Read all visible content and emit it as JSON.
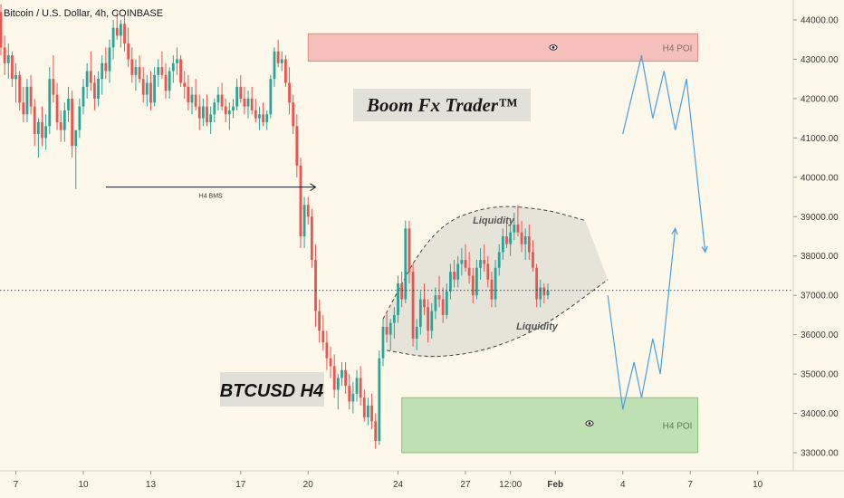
{
  "chart_data": {
    "type": "candlestick",
    "title": "Bitcoin / U.S. Dollar, 4h, COINBASE",
    "symbol": "BTCUSD",
    "timeframe": "4h",
    "exchange": "COINBASE",
    "ylim": [
      32500,
      44800
    ],
    "y_ticks": [
      "33000.00",
      "34000.00",
      "35000.00",
      "36000.00",
      "37000.00",
      "38000.00",
      "39000.00",
      "40000.00",
      "41000.00",
      "42000.00",
      "43000.00",
      "44000.00"
    ],
    "y_tick_values": [
      33000,
      34000,
      35000,
      36000,
      37000,
      38000,
      39000,
      40000,
      41000,
      42000,
      43000,
      44000
    ],
    "x_ticks": [
      "7",
      "10",
      "13",
      "17",
      "20",
      "24",
      "27",
      "12:00",
      "Feb",
      "4",
      "7",
      "10"
    ],
    "x_tick_index": [
      4,
      22,
      40,
      64,
      82,
      106,
      124,
      136,
      148,
      166,
      184,
      202
    ],
    "last_price": 37124.52,
    "last_price_label": "37124.52",
    "colors": {
      "up": "#26a69a",
      "down": "#ef5350",
      "background": "#fdf8e9",
      "projection": "#4a9fe0",
      "poi_top": "#f1a8a5",
      "poi_bottom": "#a8d8a0"
    },
    "candles": [
      [
        44200,
        44400,
        43100,
        43300
      ],
      [
        43300,
        43600,
        42600,
        42900
      ],
      [
        42900,
        43400,
        42500,
        43100
      ],
      [
        43100,
        43200,
        42300,
        42500
      ],
      [
        42500,
        42900,
        41900,
        42600
      ],
      [
        42600,
        42700,
        41700,
        41900
      ],
      [
        41900,
        42300,
        41400,
        41600
      ],
      [
        41600,
        42500,
        41400,
        42300
      ],
      [
        42300,
        42600,
        41600,
        41800
      ],
      [
        41800,
        42000,
        40800,
        41100
      ],
      [
        41100,
        41500,
        40500,
        41400
      ],
      [
        41400,
        41800,
        40800,
        41000
      ],
      [
        41000,
        41600,
        40700,
        41300
      ],
      [
        41300,
        42800,
        41100,
        42500
      ],
      [
        42500,
        43100,
        41900,
        42100
      ],
      [
        42100,
        42400,
        41200,
        41400
      ],
      [
        41400,
        41700,
        40900,
        41200
      ],
      [
        41200,
        41900,
        40900,
        41700
      ],
      [
        41700,
        42300,
        41400,
        42000
      ],
      [
        42000,
        42200,
        40500,
        40800
      ],
      [
        40800,
        41100,
        39700,
        41200
      ],
      [
        41200,
        42000,
        41000,
        41800
      ],
      [
        41800,
        42500,
        41600,
        42300
      ],
      [
        42300,
        42900,
        42000,
        42700
      ],
      [
        42700,
        43200,
        42200,
        42400
      ],
      [
        42400,
        42600,
        41700,
        42000
      ],
      [
        42000,
        42700,
        41800,
        42500
      ],
      [
        42500,
        43100,
        42100,
        42900
      ],
      [
        42900,
        43300,
        42500,
        42700
      ],
      [
        42700,
        43500,
        42400,
        43300
      ],
      [
        43300,
        44000,
        43000,
        43800
      ],
      [
        43800,
        44200,
        43500,
        43600
      ],
      [
        43600,
        44000,
        43300,
        43900
      ],
      [
        43900,
        44100,
        43200,
        43400
      ],
      [
        43400,
        43800,
        42800,
        43000
      ],
      [
        43000,
        43300,
        42400,
        42600
      ],
      [
        42600,
        43000,
        42200,
        42800
      ],
      [
        42800,
        43100,
        42400,
        42500
      ],
      [
        42500,
        42800,
        41900,
        42100
      ],
      [
        42100,
        42600,
        41800,
        42400
      ],
      [
        42400,
        42700,
        41700,
        41900
      ],
      [
        41900,
        42800,
        41800,
        42600
      ],
      [
        42600,
        43000,
        42300,
        42800
      ],
      [
        42800,
        43200,
        42500,
        42600
      ],
      [
        42600,
        42900,
        42000,
        42200
      ],
      [
        42200,
        42800,
        42000,
        42700
      ],
      [
        42700,
        43100,
        42400,
        42900
      ],
      [
        42900,
        43300,
        42600,
        43000
      ],
      [
        43000,
        43100,
        42300,
        42400
      ],
      [
        42400,
        42700,
        42000,
        42300
      ],
      [
        42300,
        42600,
        41700,
        41900
      ],
      [
        41900,
        42300,
        41600,
        42100
      ],
      [
        42100,
        42500,
        41700,
        41800
      ],
      [
        41800,
        42100,
        41200,
        41500
      ],
      [
        41500,
        42000,
        41300,
        41800
      ],
      [
        41800,
        42100,
        41300,
        41400
      ],
      [
        41400,
        41800,
        41100,
        41600
      ],
      [
        41600,
        42000,
        41400,
        41900
      ],
      [
        41900,
        42300,
        41700,
        42100
      ],
      [
        42100,
        42400,
        41700,
        41800
      ],
      [
        41800,
        42000,
        41400,
        41600
      ],
      [
        41600,
        41900,
        41200,
        41700
      ],
      [
        41700,
        42000,
        41500,
        41800
      ],
      [
        41800,
        42500,
        41700,
        42300
      ],
      [
        42300,
        42600,
        41900,
        42000
      ],
      [
        42000,
        42300,
        41600,
        41800
      ],
      [
        41800,
        42200,
        41500,
        42000
      ],
      [
        42000,
        42300,
        41600,
        41700
      ],
      [
        41700,
        42000,
        41400,
        41500
      ],
      [
        41500,
        41800,
        41200,
        41600
      ],
      [
        41600,
        41900,
        41300,
        41400
      ],
      [
        41400,
        41700,
        41200,
        41600
      ],
      [
        41600,
        42600,
        41500,
        42500
      ],
      [
        42500,
        43300,
        42300,
        43200
      ],
      [
        43200,
        43500,
        42800,
        42900
      ],
      [
        42900,
        43200,
        42700,
        43000
      ],
      [
        43000,
        43100,
        42300,
        42400
      ],
      [
        42400,
        42800,
        41600,
        41900
      ],
      [
        41900,
        42100,
        41100,
        41300
      ],
      [
        41300,
        41600,
        40000,
        40300
      ],
      [
        40300,
        40500,
        38200,
        38500
      ],
      [
        38500,
        39500,
        38200,
        39300
      ],
      [
        39300,
        39500,
        38800,
        39000
      ],
      [
        39000,
        39200,
        37700,
        37900
      ],
      [
        37900,
        38300,
        36200,
        36600
      ],
      [
        36600,
        36900,
        35800,
        36100
      ],
      [
        36100,
        36500,
        35600,
        35800
      ],
      [
        35800,
        36100,
        35100,
        35400
      ],
      [
        35400,
        35700,
        34900,
        35200
      ],
      [
        35200,
        35500,
        34400,
        34600
      ],
      [
        34600,
        35000,
        34100,
        34900
      ],
      [
        34900,
        35300,
        34700,
        35100
      ],
      [
        35100,
        35300,
        34500,
        34700
      ],
      [
        34700,
        35000,
        34100,
        34300
      ],
      [
        34300,
        34800,
        34000,
        34500
      ],
      [
        34500,
        35100,
        34300,
        34900
      ],
      [
        34900,
        35200,
        34200,
        34400
      ],
      [
        34400,
        34600,
        33800,
        33900
      ],
      [
        33900,
        34400,
        33700,
        34200
      ],
      [
        34200,
        34500,
        33600,
        33800
      ],
      [
        33800,
        34000,
        33100,
        33300
      ],
      [
        33300,
        35600,
        33200,
        35400
      ],
      [
        35400,
        36400,
        35200,
        36200
      ],
      [
        36200,
        36600,
        35800,
        36000
      ],
      [
        36000,
        36400,
        35600,
        36300
      ],
      [
        36300,
        36700,
        35900,
        36500
      ],
      [
        36500,
        37500,
        36300,
        37300
      ],
      [
        37300,
        37600,
        36700,
        36900
      ],
      [
        36900,
        38900,
        36800,
        38700
      ],
      [
        38700,
        38900,
        37300,
        37600
      ],
      [
        37600,
        37800,
        35700,
        35900
      ],
      [
        35900,
        36400,
        35600,
        36200
      ],
      [
        36200,
        37100,
        36000,
        36900
      ],
      [
        36900,
        37300,
        36500,
        36700
      ],
      [
        36700,
        36900,
        35800,
        36100
      ],
      [
        36100,
        36800,
        35900,
        36600
      ],
      [
        36600,
        37200,
        36400,
        37000
      ],
      [
        37000,
        37500,
        36700,
        36900
      ],
      [
        36900,
        37200,
        36300,
        36500
      ],
      [
        36500,
        37300,
        36400,
        37100
      ],
      [
        37100,
        37800,
        36900,
        37600
      ],
      [
        37600,
        37900,
        37200,
        37400
      ],
      [
        37400,
        38000,
        37200,
        37800
      ],
      [
        37800,
        38200,
        37500,
        37900
      ],
      [
        37900,
        38300,
        37600,
        37700
      ],
      [
        37700,
        38100,
        37300,
        37500
      ],
      [
        37500,
        37700,
        36800,
        37000
      ],
      [
        37000,
        37900,
        36900,
        37700
      ],
      [
        37700,
        38200,
        37400,
        37900
      ],
      [
        37900,
        38300,
        37600,
        37800
      ],
      [
        37800,
        38000,
        37200,
        37400
      ],
      [
        37400,
        37600,
        36700,
        36900
      ],
      [
        36900,
        37900,
        36700,
        37700
      ],
      [
        37700,
        38300,
        37500,
        38100
      ],
      [
        38100,
        38700,
        37900,
        38500
      ],
      [
        38500,
        38900,
        38200,
        38300
      ],
      [
        38300,
        38800,
        38000,
        38600
      ],
      [
        38600,
        39100,
        38400,
        38800
      ],
      [
        38800,
        39300,
        38500,
        38600
      ],
      [
        38600,
        38900,
        38100,
        38300
      ],
      [
        38300,
        38700,
        37900,
        38500
      ],
      [
        38500,
        38800,
        37900,
        38100
      ],
      [
        38100,
        38400,
        37600,
        37700
      ],
      [
        37700,
        37800,
        36700,
        36900
      ],
      [
        36900,
        37400,
        36700,
        37200
      ],
      [
        37200,
        37300,
        36800,
        37000
      ],
      [
        37000,
        37300,
        36900,
        37124
      ]
    ],
    "annotations": {
      "poi_top_label": "H4 POI",
      "poi_bottom_label": "H4 POI",
      "bms_label": "H4 BMS",
      "liquidity_top": "Liquidity",
      "liquidity_bottom": "Liquidity",
      "brand": "Boom Fx Trader™",
      "symbol_badge": "BTCUSD H4"
    },
    "zones": {
      "poi_top": {
        "from_index": 82,
        "to_index": 186,
        "low": 42950,
        "high": 43650
      },
      "poi_bottom": {
        "from_index": 107,
        "to_index": 186,
        "low": 33000,
        "high": 34400
      }
    },
    "bms_line": {
      "from_index": 28,
      "to_index": 84,
      "price": 39750
    },
    "projection_up": [
      [
        166,
        41100
      ],
      [
        171,
        43100
      ],
      [
        174,
        41500
      ],
      [
        177,
        42700
      ],
      [
        180,
        41200
      ],
      [
        183,
        42500
      ],
      [
        188,
        38100
      ]
    ],
    "projection_down": [
      [
        162,
        37000
      ],
      [
        166,
        34100
      ],
      [
        169,
        35300
      ],
      [
        171,
        34400
      ],
      [
        174,
        35900
      ],
      [
        176,
        35000
      ],
      [
        180,
        38700
      ]
    ],
    "liquidity_channel": {
      "upper_curve": [
        [
          102,
          36400
        ],
        [
          115,
          38700
        ],
        [
          130,
          39300
        ],
        [
          145,
          39200
        ],
        [
          156,
          38900
        ]
      ],
      "lower_curve": [
        [
          103,
          35600
        ],
        [
          115,
          35400
        ],
        [
          130,
          35600
        ],
        [
          145,
          36200
        ],
        [
          162,
          37400
        ]
      ]
    }
  }
}
